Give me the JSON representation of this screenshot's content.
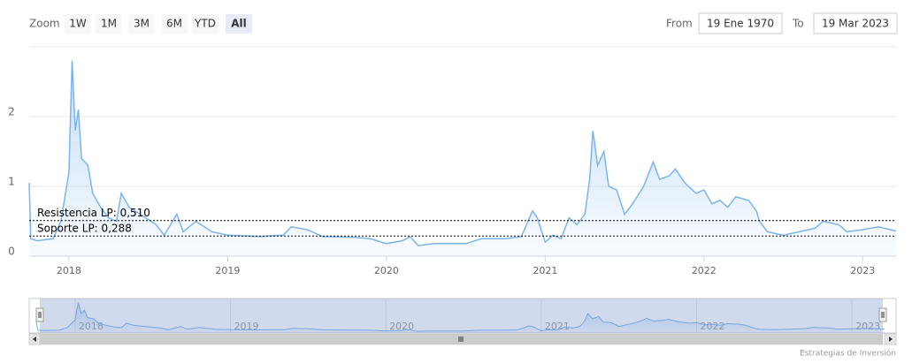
{
  "chart_data": {
    "type": "area",
    "range_selector": {
      "zoom_label": "Zoom",
      "buttons": [
        "1W",
        "1M",
        "3M",
        "6M",
        "YTD",
        "All"
      ],
      "selected": 5,
      "from_label": "From",
      "from_value": "19 Ene 1970",
      "to_label": "To",
      "to_value": "19 Mar 2023"
    },
    "x": [
      2017.75,
      2017.76,
      2017.8,
      2017.9,
      2017.95,
      2018.0,
      2018.02,
      2018.04,
      2018.06,
      2018.08,
      2018.12,
      2018.15,
      2018.2,
      2018.25,
      2018.3,
      2018.33,
      2018.38,
      2018.45,
      2018.55,
      2018.6,
      2018.68,
      2018.72,
      2018.8,
      2018.9,
      2019.0,
      2019.2,
      2019.35,
      2019.4,
      2019.5,
      2019.6,
      2019.8,
      2019.9,
      2020.0,
      2020.1,
      2020.15,
      2020.2,
      2020.3,
      2020.5,
      2020.6,
      2020.75,
      2020.85,
      2020.92,
      2020.95,
      2021.0,
      2021.05,
      2021.1,
      2021.15,
      2021.2,
      2021.25,
      2021.28,
      2021.3,
      2021.33,
      2021.37,
      2021.4,
      2021.45,
      2021.5,
      2021.55,
      2021.62,
      2021.68,
      2021.72,
      2021.78,
      2021.82,
      2021.88,
      2021.95,
      2022.0,
      2022.05,
      2022.1,
      2022.15,
      2022.2,
      2022.28,
      2022.33,
      2022.35,
      2022.4,
      2022.5,
      2022.6,
      2022.7,
      2022.75,
      2022.85,
      2022.9,
      2023.0,
      2023.1,
      2023.21
    ],
    "series": [
      {
        "color": "#7cb5ec",
        "values": [
          1.05,
          0.25,
          0.22,
          0.25,
          0.5,
          1.2,
          2.8,
          1.8,
          2.1,
          1.4,
          1.3,
          0.9,
          0.7,
          0.55,
          0.5,
          0.9,
          0.7,
          0.6,
          0.45,
          0.3,
          0.6,
          0.35,
          0.5,
          0.35,
          0.3,
          0.28,
          0.3,
          0.42,
          0.38,
          0.28,
          0.27,
          0.25,
          0.18,
          0.22,
          0.28,
          0.15,
          0.18,
          0.18,
          0.25,
          0.25,
          0.28,
          0.65,
          0.55,
          0.2,
          0.3,
          0.25,
          0.55,
          0.45,
          0.6,
          1.1,
          1.8,
          1.3,
          1.5,
          1.0,
          0.95,
          0.6,
          0.75,
          1.0,
          1.35,
          1.1,
          1.15,
          1.25,
          1.05,
          0.9,
          0.95,
          0.75,
          0.8,
          0.7,
          0.85,
          0.8,
          0.65,
          0.5,
          0.35,
          0.3,
          0.35,
          0.4,
          0.5,
          0.45,
          0.35,
          0.38,
          0.42,
          0.36
        ]
      }
    ],
    "xlim": [
      2017.75,
      2023.21
    ],
    "xticks": [
      2018,
      2019,
      2020,
      2021,
      2022,
      2023
    ],
    "ylim": [
      0,
      3
    ],
    "yticks": [
      0,
      1,
      2
    ],
    "grid": true,
    "plot_lines": [
      {
        "value": 0.51,
        "label": "Resistencia LP: 0,510"
      },
      {
        "value": 0.288,
        "label": "Soporte LP: 0,288"
      }
    ],
    "credits": "Estrategias de Inversión"
  }
}
